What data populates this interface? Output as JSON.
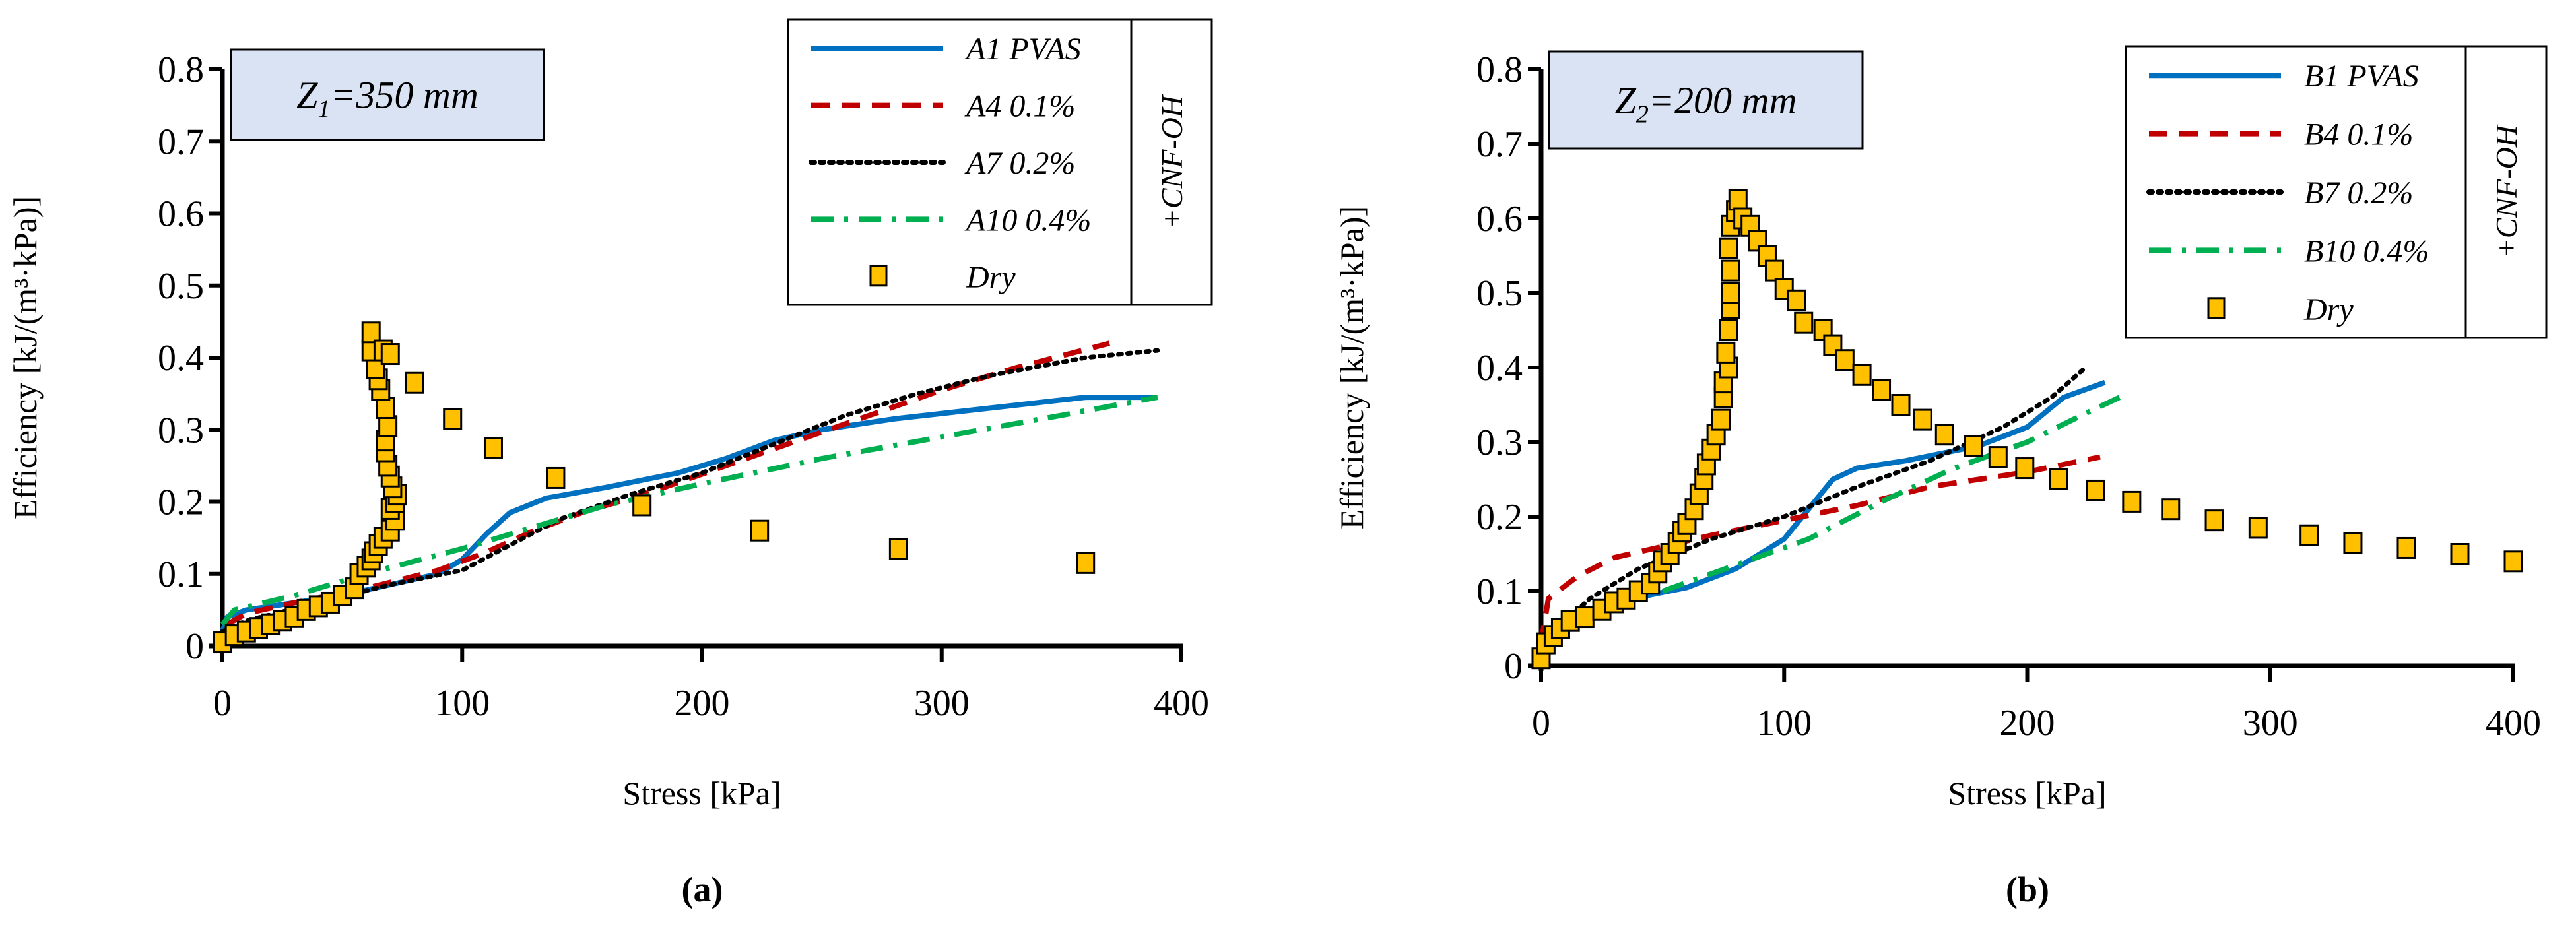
{
  "chart_data": [
    {
      "type": "line",
      "panel_label": "(a)",
      "panel_letter": "a",
      "annotation": {
        "var": "Z",
        "sub": "1",
        "rest": "=350 mm"
      },
      "xlabel": "Stress [kPa]",
      "ylabel": "Efficiency [kJ/(m³·kPa)]",
      "xlim": [
        0,
        400
      ],
      "ylim": [
        0,
        0.8
      ],
      "xticks": [
        "0",
        "100",
        "200",
        "300",
        "400"
      ],
      "yticks": [
        "0",
        "0.1",
        "0.2",
        "0.3",
        "0.4",
        "0.5",
        "0.6",
        "0.7",
        "0.8"
      ],
      "legend_group_label": "+CNF-OH",
      "legend_position": "top-right",
      "series": [
        {
          "name": "A1 PVAS",
          "style": "solid",
          "color": "#0070C0",
          "points": [
            [
              0,
              0.02
            ],
            [
              2,
              0.04
            ],
            [
              10,
              0.05
            ],
            [
              30,
              0.06
            ],
            [
              50,
              0.07
            ],
            [
              70,
              0.085
            ],
            [
              90,
              0.1
            ],
            [
              100,
              0.12
            ],
            [
              110,
              0.155
            ],
            [
              120,
              0.185
            ],
            [
              135,
              0.205
            ],
            [
              160,
              0.22
            ],
            [
              190,
              0.24
            ],
            [
              210,
              0.26
            ],
            [
              230,
              0.285
            ],
            [
              250,
              0.3
            ],
            [
              280,
              0.315
            ],
            [
              320,
              0.33
            ],
            [
              360,
              0.345
            ],
            [
              390,
              0.345
            ]
          ]
        },
        {
          "name": "A4 0.1%",
          "style": "dash",
          "color": "#C00000",
          "points": [
            [
              2,
              0.03
            ],
            [
              10,
              0.045
            ],
            [
              30,
              0.06
            ],
            [
              60,
              0.08
            ],
            [
              90,
              0.105
            ],
            [
              110,
              0.13
            ],
            [
              130,
              0.16
            ],
            [
              150,
              0.185
            ],
            [
              180,
              0.215
            ],
            [
              210,
              0.25
            ],
            [
              240,
              0.285
            ],
            [
              270,
              0.32
            ],
            [
              300,
              0.355
            ],
            [
              330,
              0.385
            ],
            [
              370,
              0.42
            ]
          ]
        },
        {
          "name": "A7 0.2%",
          "style": "dot",
          "color": "#000000",
          "points": [
            [
              0,
              0.02
            ],
            [
              10,
              0.035
            ],
            [
              40,
              0.06
            ],
            [
              70,
              0.085
            ],
            [
              100,
              0.105
            ],
            [
              120,
              0.14
            ],
            [
              140,
              0.175
            ],
            [
              170,
              0.21
            ],
            [
              200,
              0.24
            ],
            [
              230,
              0.28
            ],
            [
              260,
              0.32
            ],
            [
              290,
              0.35
            ],
            [
              320,
              0.375
            ],
            [
              360,
              0.4
            ],
            [
              390,
              0.41
            ]
          ]
        },
        {
          "name": "A10 0.4%",
          "style": "dashdot",
          "color": "#00B050",
          "points": [
            [
              0,
              0.03
            ],
            [
              5,
              0.05
            ],
            [
              30,
              0.07
            ],
            [
              60,
              0.1
            ],
            [
              100,
              0.135
            ],
            [
              130,
              0.165
            ],
            [
              160,
              0.195
            ],
            [
              200,
              0.225
            ],
            [
              250,
              0.26
            ],
            [
              300,
              0.29
            ],
            [
              350,
              0.32
            ],
            [
              390,
              0.345
            ]
          ]
        },
        {
          "name": "Dry",
          "style": "marker",
          "color": "#FFC000",
          "points": [
            [
              0,
              0.005
            ],
            [
              5,
              0.015
            ],
            [
              10,
              0.02
            ],
            [
              15,
              0.025
            ],
            [
              20,
              0.03
            ],
            [
              25,
              0.035
            ],
            [
              30,
              0.04
            ],
            [
              35,
              0.05
            ],
            [
              40,
              0.055
            ],
            [
              45,
              0.06
            ],
            [
              50,
              0.07
            ],
            [
              55,
              0.08
            ],
            [
              57,
              0.1
            ],
            [
              60,
              0.11
            ],
            [
              62,
              0.12
            ],
            [
              63,
              0.13
            ],
            [
              65,
              0.14
            ],
            [
              67,
              0.15
            ],
            [
              70,
              0.16
            ],
            [
              72,
              0.175
            ],
            [
              70,
              0.19
            ],
            [
              72,
              0.2
            ],
            [
              73,
              0.21
            ],
            [
              71,
              0.22
            ],
            [
              70,
              0.235
            ],
            [
              69,
              0.25
            ],
            [
              68,
              0.27
            ],
            [
              68,
              0.285
            ],
            [
              69,
              0.305
            ],
            [
              68,
              0.33
            ],
            [
              66,
              0.355
            ],
            [
              65,
              0.37
            ],
            [
              64,
              0.385
            ],
            [
              62,
              0.41
            ],
            [
              62,
              0.435
            ],
            [
              67,
              0.41
            ],
            [
              70,
              0.405
            ],
            [
              80,
              0.365
            ],
            [
              96,
              0.315
            ],
            [
              113,
              0.275
            ],
            [
              139,
              0.233
            ],
            [
              175,
              0.195
            ],
            [
              224,
              0.16
            ],
            [
              282,
              0.135
            ],
            [
              360,
              0.115
            ]
          ]
        }
      ]
    },
    {
      "type": "line",
      "panel_label": "(b)",
      "panel_letter": "b",
      "annotation": {
        "var": "Z",
        "sub": "2",
        "rest": "=200 mm"
      },
      "xlabel": "Stress [kPa]",
      "ylabel": "Efficiency [kJ/(m³·kPa)]",
      "xlim": [
        0,
        400
      ],
      "ylim": [
        0,
        0.8
      ],
      "xticks": [
        "0",
        "100",
        "200",
        "300",
        "400"
      ],
      "yticks": [
        "0",
        "0.1",
        "0.2",
        "0.3",
        "0.4",
        "0.5",
        "0.6",
        "0.7",
        "0.8"
      ],
      "legend_group_label": "+CNF-OH",
      "legend_position": "top-right",
      "series": [
        {
          "name": "B1 PVAS",
          "style": "solid",
          "color": "#0070C0",
          "points": [
            [
              0,
              0.03
            ],
            [
              10,
              0.06
            ],
            [
              30,
              0.08
            ],
            [
              45,
              0.095
            ],
            [
              60,
              0.105
            ],
            [
              80,
              0.13
            ],
            [
              100,
              0.17
            ],
            [
              110,
              0.21
            ],
            [
              120,
              0.25
            ],
            [
              130,
              0.265
            ],
            [
              150,
              0.275
            ],
            [
              180,
              0.295
            ],
            [
              200,
              0.32
            ],
            [
              215,
              0.36
            ],
            [
              232,
              0.38
            ]
          ]
        },
        {
          "name": "B4 0.1%",
          "style": "dash",
          "color": "#C00000",
          "points": [
            [
              0,
              0.03
            ],
            [
              3,
              0.09
            ],
            [
              15,
              0.12
            ],
            [
              30,
              0.145
            ],
            [
              50,
              0.16
            ],
            [
              70,
              0.175
            ],
            [
              100,
              0.195
            ],
            [
              130,
              0.215
            ],
            [
              160,
              0.24
            ],
            [
              200,
              0.26
            ],
            [
              230,
              0.28
            ]
          ]
        },
        {
          "name": "B7 0.2%",
          "style": "dot",
          "color": "#000000",
          "points": [
            [
              0,
              0.03
            ],
            [
              20,
              0.09
            ],
            [
              40,
              0.13
            ],
            [
              70,
              0.17
            ],
            [
              100,
              0.2
            ],
            [
              130,
              0.24
            ],
            [
              160,
              0.275
            ],
            [
              190,
              0.32
            ],
            [
              210,
              0.36
            ],
            [
              224,
              0.4
            ]
          ]
        },
        {
          "name": "B10 0.4%",
          "style": "dashdot",
          "color": "#00B050",
          "points": [
            [
              50,
              0.1
            ],
            [
              80,
              0.135
            ],
            [
              110,
              0.17
            ],
            [
              140,
              0.22
            ],
            [
              170,
              0.265
            ],
            [
              200,
              0.3
            ],
            [
              225,
              0.34
            ],
            [
              238,
              0.36
            ]
          ]
        },
        {
          "name": "Dry",
          "style": "marker",
          "color": "#FFC000",
          "points": [
            [
              0,
              0.01
            ],
            [
              2,
              0.03
            ],
            [
              5,
              0.04
            ],
            [
              8,
              0.05
            ],
            [
              12,
              0.06
            ],
            [
              18,
              0.065
            ],
            [
              25,
              0.075
            ],
            [
              30,
              0.085
            ],
            [
              35,
              0.09
            ],
            [
              40,
              0.1
            ],
            [
              45,
              0.11
            ],
            [
              48,
              0.125
            ],
            [
              50,
              0.14
            ],
            [
              53,
              0.15
            ],
            [
              56,
              0.165
            ],
            [
              58,
              0.18
            ],
            [
              60,
              0.19
            ],
            [
              63,
              0.21
            ],
            [
              65,
              0.23
            ],
            [
              67,
              0.25
            ],
            [
              68,
              0.27
            ],
            [
              70,
              0.29
            ],
            [
              72,
              0.31
            ],
            [
              74,
              0.33
            ],
            [
              75,
              0.36
            ],
            [
              75,
              0.38
            ],
            [
              77,
              0.4
            ],
            [
              76,
              0.42
            ],
            [
              77,
              0.45
            ],
            [
              78,
              0.48
            ],
            [
              78,
              0.5
            ],
            [
              78,
              0.53
            ],
            [
              77,
              0.56
            ],
            [
              78,
              0.59
            ],
            [
              80,
              0.61
            ],
            [
              81,
              0.625
            ],
            [
              83,
              0.6
            ],
            [
              86,
              0.59
            ],
            [
              89,
              0.57
            ],
            [
              93,
              0.55
            ],
            [
              96,
              0.53
            ],
            [
              100,
              0.505
            ],
            [
              105,
              0.49
            ],
            [
              108,
              0.46
            ],
            [
              116,
              0.45
            ],
            [
              120,
              0.43
            ],
            [
              125,
              0.41
            ],
            [
              132,
              0.39
            ],
            [
              140,
              0.37
            ],
            [
              148,
              0.35
            ],
            [
              157,
              0.33
            ],
            [
              166,
              0.31
            ],
            [
              178,
              0.295
            ],
            [
              188,
              0.28
            ],
            [
              199,
              0.265
            ],
            [
              213,
              0.25
            ],
            [
              228,
              0.235
            ],
            [
              243,
              0.22
            ],
            [
              259,
              0.21
            ],
            [
              277,
              0.195
            ],
            [
              295,
              0.185
            ],
            [
              316,
              0.175
            ],
            [
              334,
              0.165
            ],
            [
              356,
              0.158
            ],
            [
              378,
              0.15
            ],
            [
              400,
              0.14
            ]
          ]
        }
      ]
    }
  ]
}
